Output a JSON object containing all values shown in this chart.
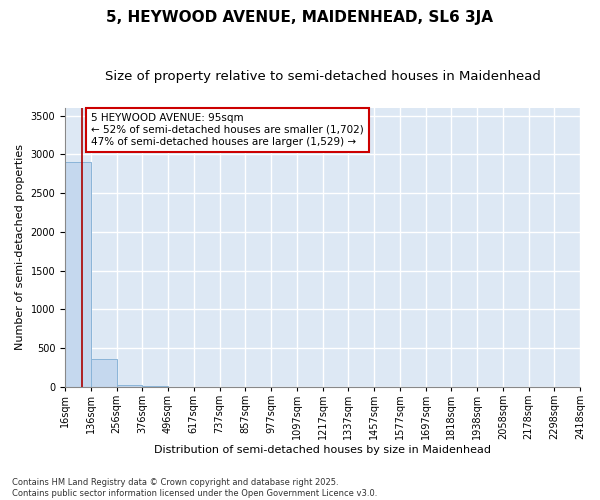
{
  "title": "5, HEYWOOD AVENUE, MAIDENHEAD, SL6 3JA",
  "subtitle": "Size of property relative to semi-detached houses in Maidenhead",
  "xlabel": "Distribution of semi-detached houses by size in Maidenhead",
  "ylabel": "Number of semi-detached properties",
  "bar_values": [
    2900,
    360,
    25,
    8,
    3,
    2,
    1,
    1,
    0,
    0,
    0,
    0,
    0,
    0,
    0,
    0,
    0,
    0,
    0,
    0
  ],
  "bin_labels": [
    "16sqm",
    "136sqm",
    "256sqm",
    "376sqm",
    "496sqm",
    "617sqm",
    "737sqm",
    "857sqm",
    "977sqm",
    "1097sqm",
    "1217sqm",
    "1337sqm",
    "1457sqm",
    "1577sqm",
    "1697sqm",
    "1818sqm",
    "1938sqm",
    "2058sqm",
    "2178sqm",
    "2298sqm",
    "2418sqm"
  ],
  "bar_color": "#c5d8ee",
  "bar_edge_color": "#8ab4d8",
  "ylim": [
    0,
    3600
  ],
  "yticks": [
    0,
    500,
    1000,
    1500,
    2000,
    2500,
    3000,
    3500
  ],
  "property_line_color": "#aa0000",
  "annotation_text": "5 HEYWOOD AVENUE: 95sqm\n← 52% of semi-detached houses are smaller (1,702)\n47% of semi-detached houses are larger (1,529) →",
  "annotation_box_color": "#cc0000",
  "background_color": "#dde8f4",
  "grid_color": "white",
  "footer": "Contains HM Land Registry data © Crown copyright and database right 2025.\nContains public sector information licensed under the Open Government Licence v3.0.",
  "title_fontsize": 11,
  "subtitle_fontsize": 9.5,
  "axis_label_fontsize": 8,
  "tick_fontsize": 7,
  "annotation_fontsize": 7.5
}
